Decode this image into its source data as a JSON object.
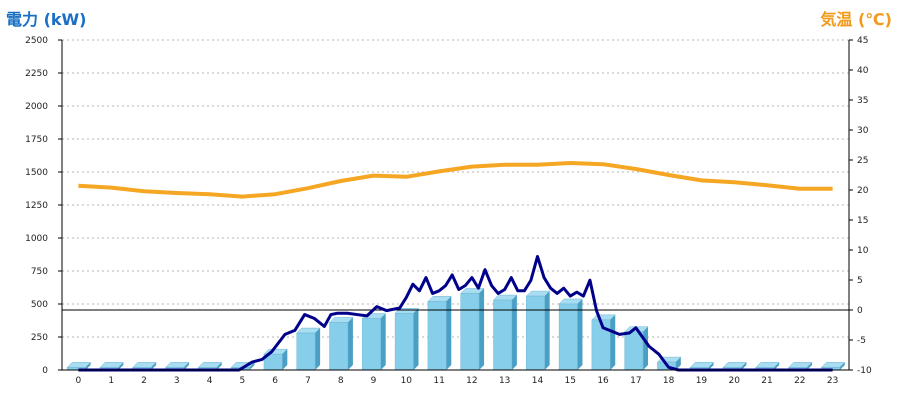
{
  "colors": {
    "bars": "#87ceeb",
    "bar_shade": "#4a9fc4",
    "bar_top": "#a9def2",
    "power_line": "#00008b",
    "temperature_line": "#f5a623",
    "left_title": "#1a6fc4",
    "right_title": "#f29a1a"
  },
  "chart_data": {
    "type": "bar",
    "title": "",
    "ylabel": "電力 (kW)",
    "y2label": "気温 (℃)",
    "xlabel": "",
    "categories": [
      "0",
      "1",
      "2",
      "3",
      "4",
      "5",
      "6",
      "7",
      "8",
      "9",
      "10",
      "11",
      "12",
      "13",
      "14",
      "15",
      "16",
      "17",
      "18",
      "19",
      "20",
      "21",
      "22",
      "23"
    ],
    "ylim": [
      0,
      2500
    ],
    "y2lim": [
      -10,
      45
    ],
    "yticks": [
      "0",
      "250",
      "500",
      "750",
      "1000",
      "1250",
      "1500",
      "1750",
      "2000",
      "2250",
      "2500"
    ],
    "y2ticks": [
      "-10",
      "-5",
      "0",
      "5",
      "10",
      "15",
      "20",
      "25",
      "30",
      "35",
      "40",
      "45"
    ],
    "grid": "horizontal dotted",
    "reference_line_y2": 0,
    "series": [
      {
        "kind": "bar",
        "axis": "left",
        "values": [
          20,
          20,
          20,
          20,
          20,
          20,
          120,
          280,
          360,
          390,
          430,
          520,
          580,
          530,
          560,
          500,
          380,
          290,
          60,
          20,
          20,
          20,
          20,
          20
        ]
      },
      {
        "kind": "line",
        "axis": "left",
        "x": [
          0,
          1,
          2,
          3,
          4,
          4.9,
          5.3,
          5.6,
          5.9,
          6.3,
          6.6,
          6.9,
          7.2,
          7.5,
          7.7,
          7.9,
          8.2,
          8.5,
          8.8,
          9.1,
          9.4,
          9.8,
          10.0,
          10.2,
          10.4,
          10.6,
          10.8,
          11.0,
          11.2,
          11.4,
          11.6,
          11.8,
          12.0,
          12.2,
          12.4,
          12.6,
          12.8,
          13.0,
          13.2,
          13.4,
          13.6,
          13.8,
          14.0,
          14.2,
          14.4,
          14.6,
          14.8,
          15.0,
          15.2,
          15.4,
          15.6,
          15.8,
          16.0,
          16.2,
          16.5,
          16.8,
          17.0,
          17.2,
          17.4,
          17.7,
          18.0,
          18.3,
          19,
          20,
          21,
          22,
          23
        ],
        "values": [
          0,
          0,
          0,
          0,
          0,
          0,
          60,
          80,
          140,
          270,
          300,
          420,
          390,
          330,
          420,
          430,
          430,
          420,
          410,
          480,
          450,
          470,
          550,
          650,
          600,
          700,
          580,
          600,
          640,
          720,
          610,
          640,
          700,
          620,
          760,
          640,
          580,
          610,
          700,
          600,
          600,
          680,
          860,
          700,
          620,
          580,
          620,
          560,
          590,
          560,
          680,
          450,
          320,
          300,
          270,
          280,
          320,
          250,
          180,
          120,
          20,
          0,
          0,
          0,
          0,
          0,
          0
        ]
      },
      {
        "kind": "line",
        "axis": "right",
        "x": [
          0,
          1,
          2,
          3,
          4,
          5,
          6,
          7,
          8,
          9,
          10,
          11,
          12,
          13,
          14,
          15,
          16,
          17,
          18,
          19,
          20,
          21,
          22,
          23
        ],
        "values": [
          20.7,
          20.4,
          19.8,
          19.5,
          19.3,
          18.9,
          19.3,
          20.3,
          21.5,
          22.4,
          22.2,
          23.1,
          23.9,
          24.2,
          24.2,
          24.5,
          24.3,
          23.5,
          22.5,
          21.6,
          21.3,
          20.8,
          20.2,
          20.2
        ]
      }
    ]
  }
}
